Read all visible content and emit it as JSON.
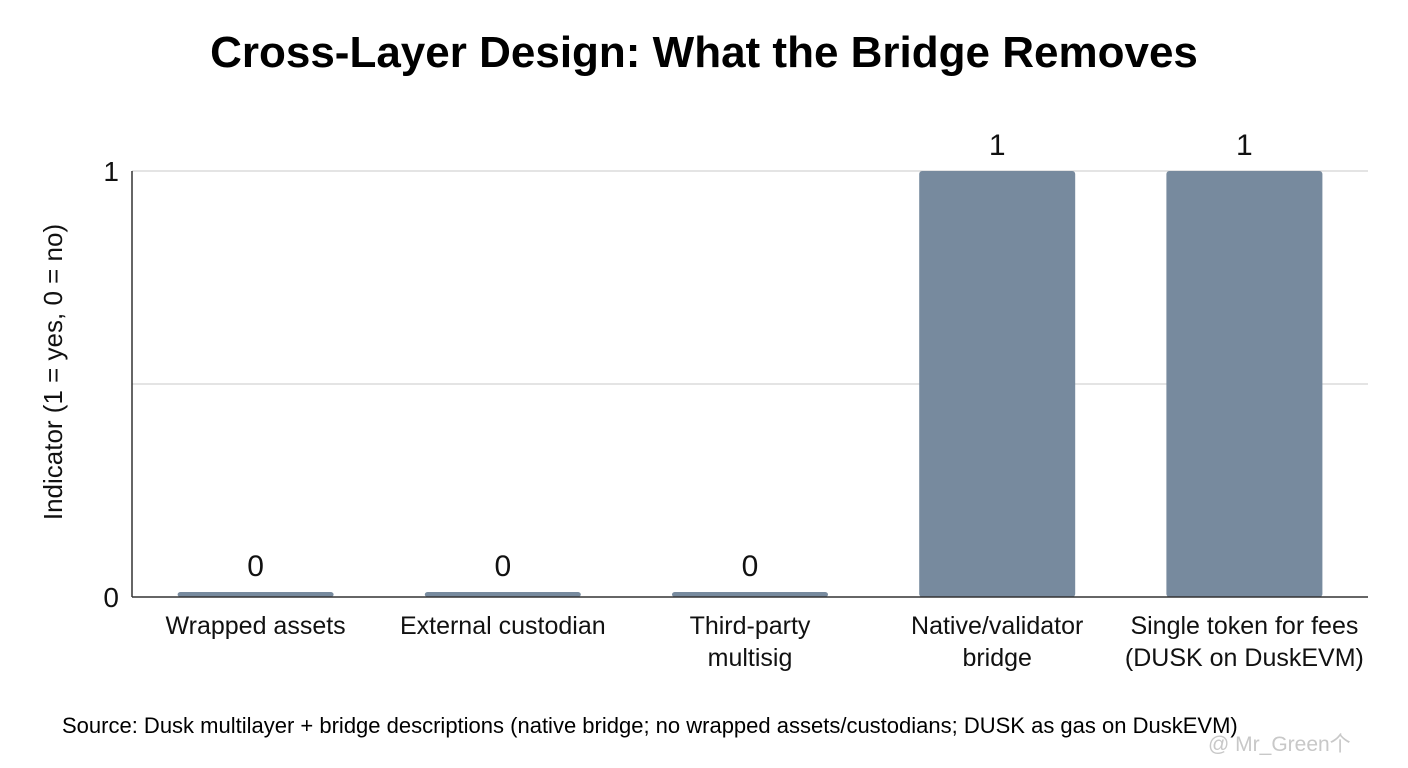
{
  "chart_data": {
    "type": "bar",
    "title": "Cross-Layer Design: What the Bridge Removes",
    "ylabel": "Indicator (1 = yes, 0 = no)",
    "xlabel": "",
    "ylim": [
      0,
      1
    ],
    "yticks": [
      0,
      1
    ],
    "gridlines": [
      0.5,
      1
    ],
    "grid": true,
    "categories": [
      [
        "Wrapped assets"
      ],
      [
        "External custodian"
      ],
      [
        "Third-party",
        "multisig"
      ],
      [
        "Native/validator",
        "bridge"
      ],
      [
        "Single token for fees",
        "(DUSK on DuskEVM)"
      ]
    ],
    "values": [
      0,
      0,
      0,
      1,
      1
    ],
    "data_labels": [
      "0",
      "0",
      "0",
      "1",
      "1"
    ],
    "bar_color": "#778a9e",
    "grid_color": "#d4d4d4",
    "axis_color": "#333333"
  },
  "source_note": "Source: Dusk multilayer + bridge descriptions (native bridge; no wrapped assets/custodians; DUSK as gas on DuskEVM)",
  "watermark": "@ Mr_Green个"
}
